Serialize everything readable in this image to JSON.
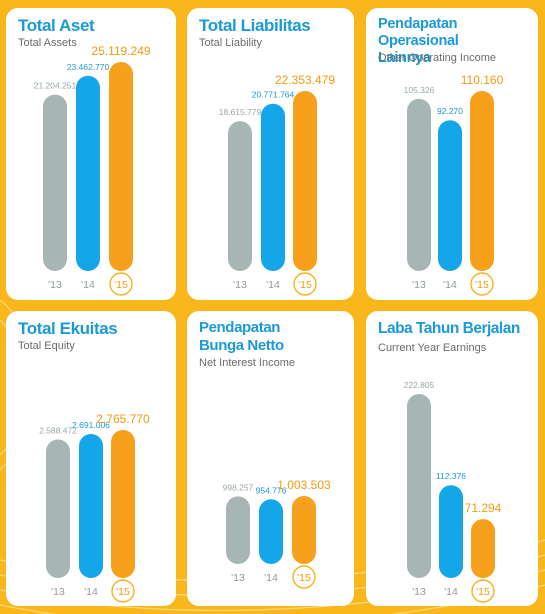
{
  "colors": {
    "background": "#f9b71b",
    "title": "#1a9ad6",
    "bar_2013": "#a8b5b5",
    "bar_2014": "#14a6e8",
    "bar_2015": "#f7a01c",
    "label_2013": "#9aa7a7",
    "label_2014": "#1a9ad6",
    "label_2015": "#f39a12",
    "year_circle": "#f7b21c"
  },
  "chart_data": [
    {
      "id": "total-aset",
      "type": "bar",
      "title": "Total Aset",
      "subtitle": "Total Assets",
      "categories": [
        "'13",
        "'14",
        "'15"
      ],
      "values": [
        21204251,
        23462770,
        25119249
      ],
      "value_labels": [
        "21.204.251",
        "23.462.770",
        "25.119.249"
      ]
    },
    {
      "id": "total-liabilitas",
      "type": "bar",
      "title": "Total Liabilitas",
      "subtitle": "Total Liability",
      "categories": [
        "'13",
        "'14",
        "'15"
      ],
      "values": [
        18615779,
        20771764,
        22353479
      ],
      "value_labels": [
        "18.615.779",
        "20.771.764",
        "22.353.479"
      ]
    },
    {
      "id": "pendapatan-operasional-lainnya",
      "type": "bar",
      "title": "Pendapatan Operasional\nLainnya",
      "subtitle": "Other Operating Income",
      "categories": [
        "'13",
        "'14",
        "'15"
      ],
      "values": [
        105326,
        92270,
        110160
      ],
      "value_labels": [
        "105.326",
        "92.270",
        "110.160"
      ]
    },
    {
      "id": "total-ekuitas",
      "type": "bar",
      "title": "Total Ekuitas",
      "subtitle": "Total Equity",
      "categories": [
        "'13",
        "'14",
        "'15"
      ],
      "values": [
        2588472,
        2691006,
        2765770
      ],
      "value_labels": [
        "2.588.472",
        "2.691.006",
        "2.765.770"
      ]
    },
    {
      "id": "pendapatan-bunga-netto",
      "type": "bar",
      "title": "Pendapatan\nBunga Netto",
      "subtitle": "Net Interest Income",
      "categories": [
        "'13",
        "'14",
        "'15"
      ],
      "values": [
        998257,
        954776,
        1003503
      ],
      "value_labels": [
        "998.257",
        "954.776",
        "1.003.503"
      ]
    },
    {
      "id": "laba-tahun-berjalan",
      "type": "bar",
      "title": "Laba Tahun Berjalan",
      "subtitle": "Current Year Earnings",
      "categories": [
        "'13",
        "'14",
        "'15"
      ],
      "values": [
        222805,
        112376,
        71294
      ],
      "value_labels": [
        "222.805",
        "112.376",
        "71.294"
      ]
    }
  ]
}
